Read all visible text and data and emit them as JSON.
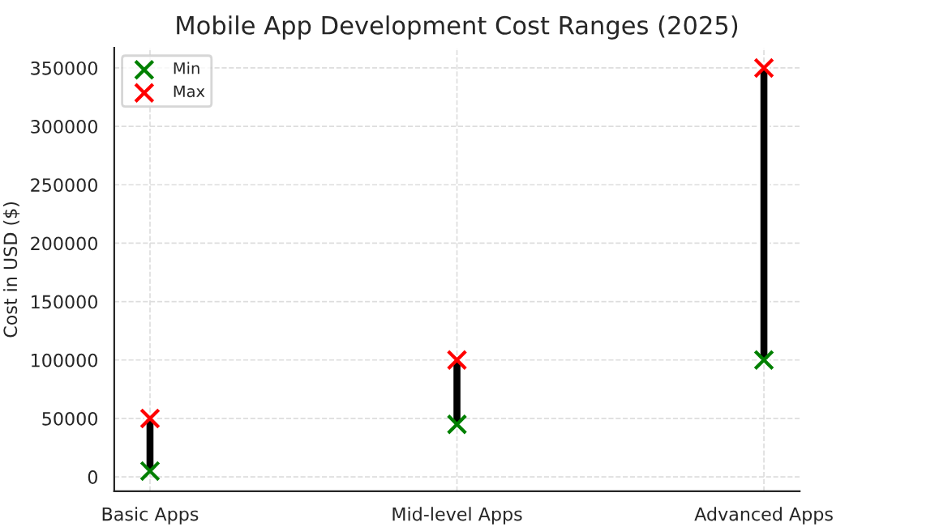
{
  "chart_data": {
    "type": "bar",
    "title": "Mobile App Development Cost Ranges (2025)",
    "ylabel": "Cost in USD ($)",
    "categories": [
      "Basic Apps",
      "Mid-level Apps",
      "Advanced Apps"
    ],
    "series": [
      {
        "color": "#000000",
        "base": [
          5000,
          45000,
          100000
        ],
        "values": [
          45000,
          55000,
          250000
        ]
      },
      {
        "type": "scatter",
        "name": "Min",
        "color": "#008000",
        "marker": "cross",
        "x": [
          "Basic Apps",
          "Mid-level Apps",
          "Advanced Apps"
        ],
        "values": [
          5000,
          45000,
          100000
        ]
      },
      {
        "type": "scatter",
        "name": "Max",
        "color": "#ff0000",
        "marker": "cross",
        "x": [
          "Basic Apps",
          "Mid-level Apps",
          "Advanced Apps"
        ],
        "values": [
          50000,
          100000,
          350000
        ]
      }
    ],
    "ylim": [
      -12250,
      367250
    ],
    "yticks": [
      0,
      50000,
      100000,
      150000,
      200000,
      250000,
      300000,
      350000
    ],
    "grid": true,
    "legend": "top left"
  }
}
